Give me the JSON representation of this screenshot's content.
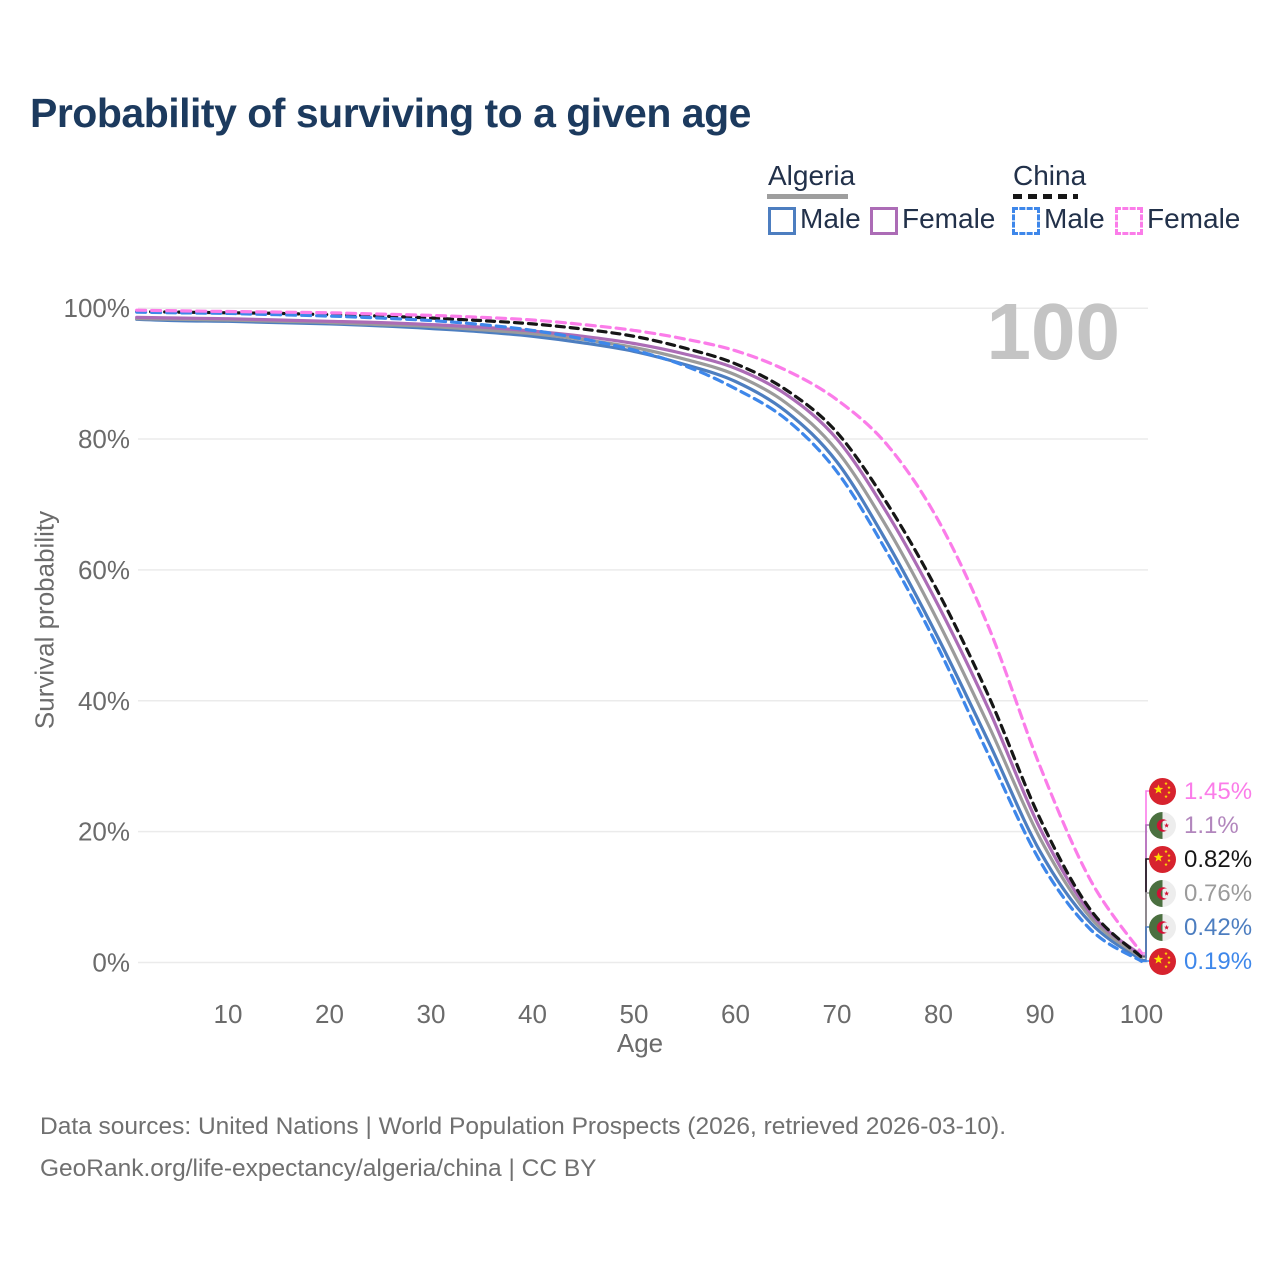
{
  "title": "Probability of surviving to a given age",
  "watermark": "100",
  "legend": {
    "groups": [
      {
        "country": "Algeria",
        "underline_color": "#9e9e9e",
        "underline_dashed": false,
        "items": [
          {
            "label": "Male",
            "color": "#4d7ec0",
            "dash": false
          },
          {
            "label": "Female",
            "color": "#ac6cb6",
            "dash": false
          }
        ]
      },
      {
        "country": "China",
        "underline_color": "#161616",
        "underline_dashed": true,
        "items": [
          {
            "label": "Male",
            "color": "#3e87ea",
            "dash": true
          },
          {
            "label": "Female",
            "color": "#fb7ce9",
            "dash": true
          }
        ]
      }
    ]
  },
  "chart_data": {
    "type": "line",
    "title": "Probability of surviving to a given age",
    "xlabel": "Age",
    "ylabel": "Survival probability",
    "x": [
      1,
      5,
      10,
      15,
      20,
      25,
      30,
      35,
      40,
      45,
      50,
      55,
      60,
      65,
      70,
      75,
      80,
      85,
      90,
      95,
      100
    ],
    "xticks": [
      10,
      20,
      30,
      40,
      50,
      60,
      70,
      80,
      90,
      100
    ],
    "yticks": [
      {
        "value": 0,
        "label": "0%"
      },
      {
        "value": 20,
        "label": "20%"
      },
      {
        "value": 40,
        "label": "40%"
      },
      {
        "value": 60,
        "label": "60%"
      },
      {
        "value": 80,
        "label": "80%"
      },
      {
        "value": 100,
        "label": "100%"
      }
    ],
    "xlim": [
      0,
      100
    ],
    "ylim": [
      0,
      100
    ],
    "grid": true,
    "legend_position": "top-right",
    "series": [
      {
        "name": "algeria-male",
        "country": "Algeria",
        "sex": "Male",
        "color": "#4d7ec0",
        "dash": false,
        "values": [
          98.3,
          98.1,
          98.0,
          97.8,
          97.6,
          97.3,
          96.9,
          96.4,
          95.7,
          94.7,
          93.4,
          91.4,
          88.8,
          84.2,
          76.5,
          64.0,
          49.5,
          33.5,
          17.0,
          6.0,
          0.42
        ]
      },
      {
        "name": "algeria-total",
        "country": "Algeria",
        "sex": "Both",
        "color": "#9b9b9b",
        "dash": false,
        "values": [
          98.4,
          98.3,
          98.2,
          98.0,
          97.8,
          97.5,
          97.2,
          96.7,
          96.1,
          95.2,
          94.0,
          92.2,
          89.8,
          85.5,
          78.2,
          66.3,
          52.0,
          36.0,
          19.0,
          6.8,
          0.76
        ]
      },
      {
        "name": "algeria-female",
        "country": "Algeria",
        "sex": "Female",
        "color": "#ac6cb6",
        "dash": false,
        "values": [
          98.6,
          98.5,
          98.4,
          98.2,
          98.0,
          97.8,
          97.5,
          97.1,
          96.5,
          95.7,
          94.6,
          93.0,
          90.8,
          86.8,
          80.0,
          68.5,
          54.5,
          38.5,
          20.5,
          7.5,
          1.1
        ]
      },
      {
        "name": "china-total",
        "country": "China",
        "sex": "Both",
        "color": "#161616",
        "dash": true,
        "values": [
          99.5,
          99.4,
          99.3,
          99.2,
          99.0,
          98.8,
          98.5,
          98.1,
          97.6,
          96.8,
          95.7,
          93.9,
          91.5,
          87.5,
          81.0,
          70.0,
          56.5,
          40.5,
          22.0,
          8.0,
          0.82
        ]
      },
      {
        "name": "china-male",
        "country": "China",
        "sex": "Male",
        "color": "#3e87ea",
        "dash": true,
        "values": [
          99.4,
          99.3,
          99.2,
          99.0,
          98.8,
          98.5,
          98.1,
          97.5,
          96.6,
          95.3,
          93.6,
          91.2,
          87.7,
          83.0,
          75.0,
          62.5,
          48.0,
          31.5,
          15.5,
          5.0,
          0.19
        ]
      },
      {
        "name": "china-female",
        "country": "China",
        "sex": "Female",
        "color": "#fb7ce9",
        "dash": true,
        "values": [
          99.7,
          99.6,
          99.5,
          99.4,
          99.3,
          99.1,
          98.9,
          98.6,
          98.2,
          97.5,
          96.6,
          95.3,
          93.5,
          90.5,
          86.0,
          79.0,
          67.5,
          51.0,
          30.0,
          12.5,
          1.45
        ]
      }
    ]
  },
  "end_labels": [
    {
      "series": "china-female",
      "flag": "cn",
      "value": "1.45%",
      "text_color": "#fb7ce9"
    },
    {
      "series": "algeria-female",
      "flag": "dz",
      "value": "1.1%",
      "text_color": "#b286bd"
    },
    {
      "series": "china-total",
      "flag": "cn",
      "value": "0.82%",
      "text_color": "#161616"
    },
    {
      "series": "algeria-total",
      "flag": "dz",
      "value": "0.76%",
      "text_color": "#9b9b9b"
    },
    {
      "series": "algeria-male",
      "flag": "dz",
      "value": "0.42%",
      "text_color": "#4d7ec0"
    },
    {
      "series": "china-male",
      "flag": "cn",
      "value": "0.19%",
      "text_color": "#3e87ea"
    }
  ],
  "footer": {
    "line1": "Data sources: United Nations | World Population Prospects (2026, retrieved 2026-03-10).",
    "line2": "GeoRank.org/life-expectancy/algeria/china | CC BY"
  }
}
